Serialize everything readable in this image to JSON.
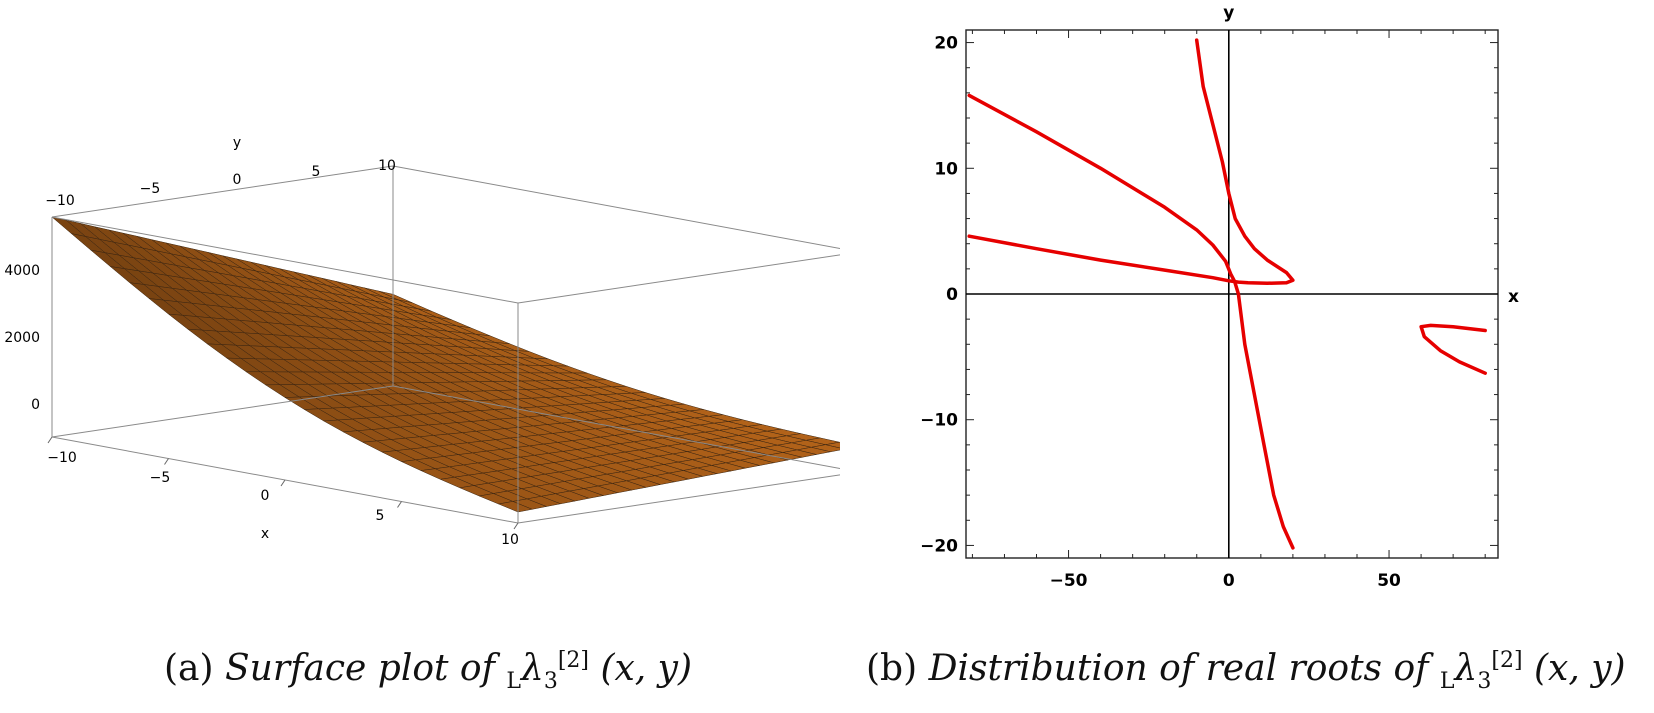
{
  "chart_data": [
    {
      "type": "surface",
      "panel_label": "(a)",
      "caption": "Surface plot of",
      "caption_math": {
        "prefix": "L",
        "symbol": "λ",
        "sub": "3",
        "sup": "[2]",
        "args": "(x, y)"
      },
      "xlabel": "x",
      "ylabel": "y",
      "x_ticks": [
        "−10",
        "−5",
        "0",
        "5",
        "10"
      ],
      "y_ticks": [
        "−10",
        "−5",
        "0",
        "5",
        "10"
      ],
      "z_ticks": [
        "4000",
        "2000",
        "0"
      ],
      "xlim": [
        -10,
        10
      ],
      "ylim": [
        -10,
        10
      ],
      "zlim": [
        -1000,
        5000
      ],
      "surface_color": "#d9781f",
      "corner_z": {
        "x_-10_y_-10": 5000,
        "x_10_y_10": -300,
        "x_10_y_-10": -700,
        "x_-10_y_10": 1500
      }
    },
    {
      "type": "line",
      "panel_label": "(b)",
      "caption": "Distribution of real roots of",
      "caption_math": {
        "prefix": "L",
        "symbol": "λ",
        "sub": "3",
        "sup": "[2]",
        "args": "(x, y)"
      },
      "xlabel": "x",
      "ylabel": "y",
      "xlim": [
        -82,
        84
      ],
      "ylim": [
        -21,
        21
      ],
      "x_ticks": [
        "−50",
        "0",
        "50"
      ],
      "y_ticks": [
        "20",
        "10",
        "0",
        "−10",
        "−20"
      ],
      "color": "#e60000",
      "series": [
        {
          "points": [
            [
              -81,
              15.8
            ],
            [
              -60,
              12.9
            ],
            [
              -40,
              10.0
            ],
            [
              -20,
              6.9
            ],
            [
              -10,
              5.1
            ],
            [
              -5,
              3.9
            ],
            [
              -1,
              2.6
            ],
            [
              0.6,
              1.6
            ],
            [
              1.8,
              1.0
            ],
            [
              3,
              0.0
            ],
            [
              5,
              -4
            ],
            [
              8,
              -8
            ],
            [
              11,
              -12
            ],
            [
              14,
              -16
            ],
            [
              17,
              -18.5
            ],
            [
              20,
              -20.2
            ]
          ]
        },
        {
          "points": [
            [
              -81,
              4.6
            ],
            [
              -60,
              3.6
            ],
            [
              -40,
              2.7
            ],
            [
              -20,
              1.9
            ],
            [
              -5,
              1.3
            ],
            [
              0,
              1.05
            ],
            [
              3,
              0.95
            ],
            [
              6,
              0.9
            ],
            [
              12,
              0.85
            ],
            [
              18,
              0.9
            ],
            [
              20,
              1.1
            ],
            [
              18,
              1.7
            ],
            [
              12,
              2.7
            ],
            [
              8,
              3.6
            ],
            [
              5,
              4.6
            ],
            [
              2,
              6.0
            ],
            [
              0,
              8.0
            ],
            [
              -2,
              10.5
            ],
            [
              -5,
              13.5
            ],
            [
              -8,
              16.5
            ],
            [
              -10,
              20.2
            ]
          ]
        },
        {
          "points": [
            [
              80,
              -2.9
            ],
            [
              70,
              -2.6
            ],
            [
              63,
              -2.5
            ],
            [
              60,
              -2.6
            ],
            [
              61,
              -3.4
            ],
            [
              66,
              -4.5
            ],
            [
              72,
              -5.4
            ],
            [
              80,
              -6.3
            ]
          ]
        }
      ]
    }
  ]
}
